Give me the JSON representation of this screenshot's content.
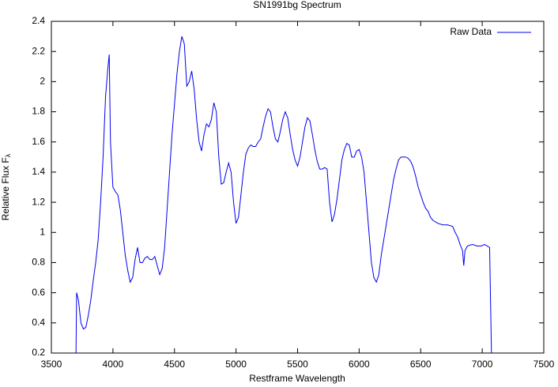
{
  "chart_data": {
    "type": "line",
    "title": "SN1991bg Spectrum",
    "xlabel": "Restframe Wavelength",
    "ylabel": "Relative Flux F",
    "ylabel_sub": "λ",
    "legend": "top-right",
    "grid": false,
    "xlim": [
      3500,
      7500
    ],
    "xticks": [
      3500,
      4000,
      4500,
      5000,
      5500,
      6000,
      6500,
      7000,
      7500
    ],
    "ylim": [
      0.2,
      2.4
    ],
    "yticks": [
      0.2,
      0.4,
      0.6,
      0.8,
      1,
      1.2,
      1.4,
      1.6,
      1.8,
      2,
      2.2,
      2.4
    ],
    "x": [
      3700,
      3705,
      3720,
      3740,
      3760,
      3780,
      3800,
      3820,
      3840,
      3860,
      3880,
      3900,
      3920,
      3940,
      3960,
      3970,
      3980,
      4000,
      4020,
      4040,
      4060,
      4080,
      4100,
      4120,
      4140,
      4160,
      4180,
      4200,
      4220,
      4240,
      4260,
      4280,
      4300,
      4320,
      4340,
      4360,
      4380,
      4400,
      4420,
      4440,
      4460,
      4480,
      4500,
      4520,
      4540,
      4560,
      4580,
      4600,
      4620,
      4640,
      4660,
      4680,
      4700,
      4720,
      4740,
      4760,
      4780,
      4800,
      4820,
      4840,
      4860,
      4880,
      4900,
      4920,
      4940,
      4960,
      4980,
      5000,
      5020,
      5040,
      5060,
      5080,
      5100,
      5120,
      5140,
      5160,
      5180,
      5200,
      5220,
      5240,
      5260,
      5280,
      5300,
      5320,
      5340,
      5360,
      5380,
      5400,
      5420,
      5440,
      5460,
      5480,
      5500,
      5520,
      5540,
      5560,
      5580,
      5600,
      5620,
      5640,
      5660,
      5680,
      5700,
      5720,
      5740,
      5760,
      5780,
      5800,
      5820,
      5840,
      5860,
      5880,
      5900,
      5920,
      5940,
      5960,
      5980,
      6000,
      6020,
      6040,
      6060,
      6080,
      6100,
      6120,
      6140,
      6160,
      6180,
      6200,
      6220,
      6240,
      6260,
      6280,
      6300,
      6320,
      6340,
      6360,
      6380,
      6400,
      6420,
      6440,
      6460,
      6480,
      6500,
      6520,
      6540,
      6560,
      6580,
      6600,
      6640,
      6680,
      6720,
      6760,
      6780,
      6800,
      6820,
      6840,
      6850,
      6860,
      6880,
      6920,
      6960,
      6990,
      7020,
      7040,
      7060,
      7075
    ],
    "series": [
      {
        "name": "Raw Data",
        "color": "#0000ee",
        "values": [
          0.2,
          0.6,
          0.55,
          0.4,
          0.36,
          0.37,
          0.45,
          0.55,
          0.68,
          0.8,
          0.95,
          1.2,
          1.5,
          1.9,
          2.1,
          2.18,
          1.6,
          1.3,
          1.27,
          1.25,
          1.15,
          1.0,
          0.85,
          0.75,
          0.67,
          0.7,
          0.82,
          0.9,
          0.8,
          0.8,
          0.83,
          0.84,
          0.82,
          0.82,
          0.84,
          0.78,
          0.72,
          0.76,
          0.9,
          1.15,
          1.4,
          1.65,
          1.85,
          2.05,
          2.2,
          2.3,
          2.25,
          1.97,
          2.0,
          2.07,
          1.95,
          1.75,
          1.6,
          1.54,
          1.65,
          1.72,
          1.7,
          1.75,
          1.86,
          1.8,
          1.5,
          1.32,
          1.33,
          1.4,
          1.46,
          1.4,
          1.2,
          1.06,
          1.1,
          1.25,
          1.4,
          1.52,
          1.56,
          1.58,
          1.57,
          1.57,
          1.6,
          1.62,
          1.7,
          1.77,
          1.82,
          1.8,
          1.7,
          1.62,
          1.6,
          1.67,
          1.75,
          1.8,
          1.76,
          1.65,
          1.55,
          1.48,
          1.44,
          1.5,
          1.6,
          1.7,
          1.76,
          1.74,
          1.65,
          1.55,
          1.47,
          1.42,
          1.42,
          1.43,
          1.42,
          1.2,
          1.07,
          1.12,
          1.22,
          1.35,
          1.48,
          1.55,
          1.59,
          1.58,
          1.5,
          1.5,
          1.54,
          1.55,
          1.5,
          1.4,
          1.2,
          1.0,
          0.8,
          0.7,
          0.67,
          0.72,
          0.85,
          0.95,
          1.05,
          1.15,
          1.25,
          1.35,
          1.42,
          1.48,
          1.5,
          1.5,
          1.5,
          1.49,
          1.47,
          1.43,
          1.37,
          1.3,
          1.25,
          1.2,
          1.16,
          1.14,
          1.1,
          1.08,
          1.06,
          1.05,
          1.05,
          1.04,
          1.0,
          0.97,
          0.92,
          0.88,
          0.78,
          0.88,
          0.91,
          0.92,
          0.91,
          0.91,
          0.92,
          0.91,
          0.9,
          0.2
        ]
      }
    ]
  }
}
